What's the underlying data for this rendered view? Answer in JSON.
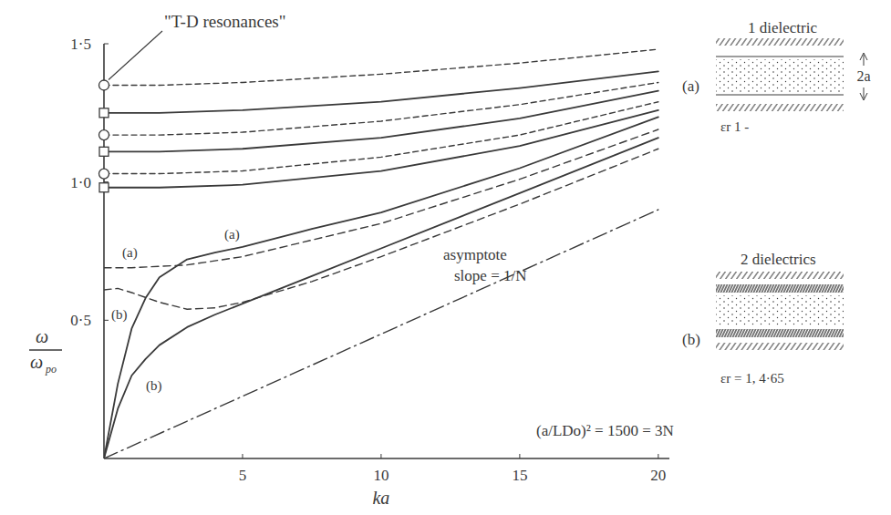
{
  "chart_data": {
    "type": "line",
    "color": "#3a3a3a",
    "xlabel": "ka",
    "ylabel": {
      "numerator": "ω",
      "denominator": "ω",
      "denominator_subscript": "po"
    },
    "xlim": [
      0,
      20.4
    ],
    "ylim": [
      0,
      1.5
    ],
    "xticks": [
      5,
      10,
      15,
      20
    ],
    "yticks": [
      {
        "value": 0.5,
        "label": "0·5"
      },
      {
        "value": 1.0,
        "label": "1·0"
      },
      {
        "value": 1.5,
        "label": "1·5"
      }
    ],
    "grid": false,
    "series": [
      {
        "name": "(a)",
        "line_style": "solid",
        "x": [
          0,
          0.5,
          1,
          1.5,
          2,
          3,
          4,
          5,
          7.5,
          10,
          15,
          20
        ],
        "values": [
          0,
          0.27,
          0.47,
          0.58,
          0.655,
          0.72,
          0.745,
          0.765,
          0.83,
          0.89,
          1.05,
          1.235
        ]
      },
      {
        "name": "(a)",
        "line_style": "dashed",
        "x": [
          0,
          1,
          2,
          3,
          4,
          5,
          7.5,
          10,
          15,
          20
        ],
        "values": [
          0.69,
          0.69,
          0.695,
          0.7,
          0.715,
          0.73,
          0.79,
          0.85,
          1.01,
          1.19
        ]
      },
      {
        "name": "(b)",
        "line_style": "solid",
        "x": [
          0,
          0.5,
          1,
          1.5,
          2,
          3,
          4,
          5,
          7.5,
          10,
          15,
          20
        ],
        "values": [
          0,
          0.18,
          0.3,
          0.36,
          0.41,
          0.475,
          0.52,
          0.56,
          0.66,
          0.76,
          0.96,
          1.16
        ]
      },
      {
        "name": "(b)",
        "line_style": "dashed",
        "x": [
          0,
          0.5,
          1,
          2,
          3,
          4,
          5,
          7.5,
          10,
          15,
          20
        ],
        "values": [
          0.61,
          0.615,
          0.6,
          0.565,
          0.54,
          0.545,
          0.565,
          0.64,
          0.73,
          0.92,
          1.12
        ]
      },
      {
        "line_style": "dashed",
        "x": [
          0,
          2,
          5,
          10,
          15,
          20
        ],
        "values": [
          1.35,
          1.35,
          1.36,
          1.39,
          1.43,
          1.48
        ]
      },
      {
        "line_style": "solid",
        "x": [
          0,
          2,
          5,
          10,
          15,
          20
        ],
        "values": [
          1.25,
          1.25,
          1.26,
          1.29,
          1.34,
          1.4
        ]
      },
      {
        "line_style": "dashed",
        "x": [
          0,
          2,
          5,
          10,
          15,
          20
        ],
        "values": [
          1.17,
          1.17,
          1.18,
          1.22,
          1.28,
          1.36
        ]
      },
      {
        "line_style": "solid",
        "x": [
          0,
          2,
          5,
          10,
          15,
          20
        ],
        "values": [
          1.11,
          1.11,
          1.12,
          1.16,
          1.23,
          1.33
        ]
      },
      {
        "line_style": "dashed",
        "x": [
          0,
          2,
          5,
          10,
          15,
          20
        ],
        "values": [
          1.03,
          1.03,
          1.04,
          1.09,
          1.17,
          1.29
        ]
      },
      {
        "line_style": "solid",
        "x": [
          0,
          2,
          5,
          10,
          15,
          20
        ],
        "values": [
          0.98,
          0.98,
          0.99,
          1.04,
          1.13,
          1.26
        ]
      },
      {
        "line_style": "dashdot",
        "x": [
          0,
          20
        ],
        "values": [
          0,
          0.9
        ]
      },
      {
        "type": "scatter",
        "marker": "circle",
        "x": [
          0,
          0,
          0
        ],
        "values": [
          1.35,
          1.17,
          1.03
        ]
      },
      {
        "type": "scatter",
        "marker": "square",
        "x": [
          0,
          0,
          0
        ],
        "values": [
          1.25,
          1.11,
          0.98
        ]
      }
    ],
    "annotations": [
      {
        "text": "\"T-D resonances\""
      },
      {
        "text": "asymptote"
      },
      {
        "text": "slope = 1/N"
      },
      {
        "text": "(a/LDo)² = 1500 = 3N"
      }
    ],
    "insets": [
      {
        "label": "(a)",
        "title": "1 dielectric",
        "dimension": "2a",
        "permittivity": "εr 1 -"
      },
      {
        "label": "(b)",
        "title": "2 dielectrics",
        "permittivity": "εr = 1, 4·65"
      }
    ]
  }
}
